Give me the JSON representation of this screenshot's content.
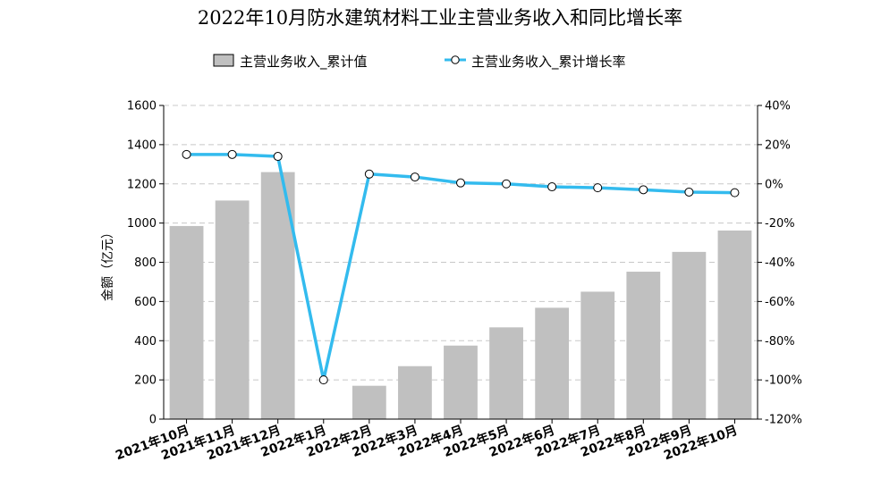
{
  "chart_data": {
    "type": "bar+line",
    "title": "2022年10月防水建筑材料工业主营业务收入和同比增长率",
    "categories": [
      "2021年10月",
      "2021年11月",
      "2021年12月",
      "2022年1月",
      "2022年2月",
      "2022年3月",
      "2022年4月",
      "2022年5月",
      "2022年6月",
      "2022年7月",
      "2022年8月",
      "2022年9月",
      "2022年10月"
    ],
    "series": [
      {
        "name": "主营业务收入_累计值",
        "type": "bar",
        "axis": "left",
        "color": "#c0c0c0",
        "values": [
          985,
          1115,
          1260,
          null,
          170,
          270,
          375,
          468,
          568,
          650,
          752,
          853,
          962
        ]
      },
      {
        "name": "主营业务收入_累计增长率",
        "type": "line",
        "axis": "right",
        "color": "#33bbee",
        "values": [
          15,
          15,
          14,
          -100,
          5,
          3.5,
          0.5,
          0,
          -1.5,
          -2,
          -3,
          -4.2,
          -4.5
        ]
      }
    ],
    "ylabel": "金额（亿元）",
    "ylim": [
      0,
      1600
    ],
    "yticks": [
      "0",
      "200",
      "400",
      "600",
      "800",
      "1000",
      "1200",
      "1400",
      "1600"
    ],
    "y2lim": [
      -120,
      40
    ],
    "y2ticks": [
      "-120%",
      "-100%",
      "-80%",
      "-60%",
      "-40%",
      "-20%",
      "0%",
      "20%",
      "40%"
    ],
    "grid": true,
    "legend_position": "top-center"
  }
}
